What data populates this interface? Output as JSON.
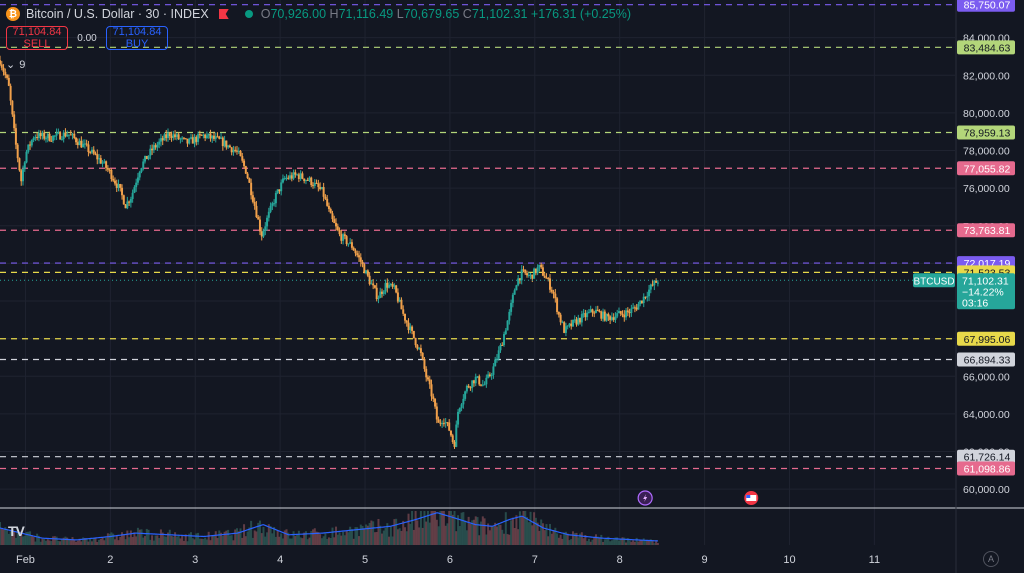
{
  "header": {
    "symbol_title": "Bitcoin / U.S. Dollar · 30 · INDEX",
    "coin_icon": "bitcoin-icon",
    "ohlc": {
      "o_label": "O",
      "o": "70,926.00",
      "h_label": "H",
      "h": "71,116.49",
      "l_label": "L",
      "l": "70,679.65",
      "c_label": "C",
      "c": "71,102.31",
      "change": "+176.31 (+0.25%)"
    }
  },
  "trade": {
    "sell_price": "71,104.84",
    "sell_label": "SELL",
    "spread": "0.00",
    "buy_price": "71,104.84",
    "buy_label": "BUY"
  },
  "indicators_collapsed_count": "9",
  "colors": {
    "background": "#131722",
    "up": "#26a69a",
    "down": "#f0a04b",
    "green_line": "#b3d67a",
    "pink_line": "#e66a8e",
    "white_line": "#d1d4dc",
    "yellow_line": "#e8d94a",
    "purple_line": "#7b5cf0",
    "volume_ma": "#2962ff"
  },
  "chart_data": {
    "type": "candlestick",
    "ylim": [
      59000,
      86000
    ],
    "y_ticks": [
      "60,000.00",
      "62,000.00",
      "64,000.00",
      "66,000.00",
      "68,000.00",
      "70,000.00",
      "72,000.00",
      "74,000.00",
      "76,000.00",
      "78,000.00",
      "80,000.00",
      "82,000.00",
      "84,000.00"
    ],
    "x_ticks": [
      {
        "label": "Feb",
        "pos": 0
      },
      {
        "label": "2",
        "pos": 1
      },
      {
        "label": "3",
        "pos": 2
      },
      {
        "label": "4",
        "pos": 3
      },
      {
        "label": "5",
        "pos": 4
      },
      {
        "label": "6",
        "pos": 5
      },
      {
        "label": "7",
        "pos": 6
      },
      {
        "label": "8",
        "pos": 7
      },
      {
        "label": "9",
        "pos": 8
      },
      {
        "label": "10",
        "pos": 9
      },
      {
        "label": "11",
        "pos": 10
      }
    ],
    "x_range": [
      -0.3,
      10.95
    ],
    "price_path": [
      [
        -0.3,
        82800
      ],
      [
        -0.2,
        81500
      ],
      [
        -0.12,
        78500
      ],
      [
        -0.05,
        76400
      ],
      [
        0.0,
        77800
      ],
      [
        0.1,
        78800
      ],
      [
        0.3,
        78700
      ],
      [
        0.5,
        78900
      ],
      [
        0.7,
        78200
      ],
      [
        0.9,
        77400
      ],
      [
        1.0,
        76800
      ],
      [
        1.1,
        76000
      ],
      [
        1.18,
        75100
      ],
      [
        1.25,
        75600
      ],
      [
        1.35,
        77100
      ],
      [
        1.5,
        78100
      ],
      [
        1.7,
        78900
      ],
      [
        1.9,
        78400
      ],
      [
        2.1,
        78800
      ],
      [
        2.3,
        78500
      ],
      [
        2.5,
        77900
      ],
      [
        2.6,
        76900
      ],
      [
        2.7,
        75100
      ],
      [
        2.78,
        73500
      ],
      [
        2.85,
        74400
      ],
      [
        2.95,
        75600
      ],
      [
        3.05,
        76500
      ],
      [
        3.2,
        76700
      ],
      [
        3.35,
        76400
      ],
      [
        3.5,
        75800
      ],
      [
        3.6,
        74400
      ],
      [
        3.7,
        73500
      ],
      [
        3.85,
        72900
      ],
      [
        3.95,
        72100
      ],
      [
        4.05,
        71100
      ],
      [
        4.15,
        70200
      ],
      [
        4.25,
        70900
      ],
      [
        4.35,
        70600
      ],
      [
        4.45,
        69300
      ],
      [
        4.55,
        68300
      ],
      [
        4.65,
        67300
      ],
      [
        4.72,
        66000
      ],
      [
        4.8,
        64800
      ],
      [
        4.86,
        63400
      ],
      [
        4.92,
        63800
      ],
      [
        5.0,
        63100
      ],
      [
        5.05,
        62300
      ],
      [
        5.1,
        64300
      ],
      [
        5.2,
        65400
      ],
      [
        5.3,
        65900
      ],
      [
        5.4,
        65500
      ],
      [
        5.5,
        66300
      ],
      [
        5.6,
        67600
      ],
      [
        5.7,
        69300
      ],
      [
        5.78,
        71000
      ],
      [
        5.85,
        71500
      ],
      [
        5.95,
        71300
      ],
      [
        6.05,
        71800
      ],
      [
        6.15,
        71100
      ],
      [
        6.22,
        70400
      ],
      [
        6.28,
        69300
      ],
      [
        6.35,
        68400
      ],
      [
        6.45,
        68800
      ],
      [
        6.55,
        69100
      ],
      [
        6.7,
        69500
      ],
      [
        6.85,
        69100
      ],
      [
        7.0,
        69300
      ],
      [
        7.1,
        69400
      ],
      [
        7.2,
        69700
      ],
      [
        7.3,
        70300
      ],
      [
        7.38,
        70800
      ],
      [
        7.45,
        71100
      ]
    ],
    "volume_profile": [
      [
        -0.3,
        0.5
      ],
      [
        0.2,
        0.2
      ],
      [
        0.6,
        0.15
      ],
      [
        1.0,
        0.25
      ],
      [
        1.3,
        0.35
      ],
      [
        1.7,
        0.3
      ],
      [
        2.1,
        0.25
      ],
      [
        2.5,
        0.35
      ],
      [
        2.8,
        0.6
      ],
      [
        3.1,
        0.3
      ],
      [
        3.5,
        0.35
      ],
      [
        3.9,
        0.45
      ],
      [
        4.3,
        0.55
      ],
      [
        4.6,
        0.75
      ],
      [
        4.85,
        0.95
      ],
      [
        5.05,
        0.8
      ],
      [
        5.3,
        0.6
      ],
      [
        5.5,
        0.55
      ],
      [
        5.7,
        0.75
      ],
      [
        5.85,
        0.85
      ],
      [
        6.1,
        0.5
      ],
      [
        6.4,
        0.3
      ],
      [
        6.8,
        0.2
      ],
      [
        7.2,
        0.15
      ],
      [
        7.45,
        0.12
      ]
    ],
    "horizontal_levels": [
      {
        "label": "85,750.07",
        "value": 85750.07,
        "color": "#7b5cf0"
      },
      {
        "label": "83,484.63",
        "value": 83484.63,
        "color": "#b3d67a"
      },
      {
        "label": "78,959.13",
        "value": 78959.13,
        "color": "#b3d67a"
      },
      {
        "label": "77,055.82",
        "value": 77055.82,
        "color": "#e66a8e"
      },
      {
        "label": "73,763.81",
        "value": 73763.81,
        "color": "#e66a8e"
      },
      {
        "label": "72,017.19",
        "value": 72017.19,
        "color": "#7b5cf0"
      },
      {
        "label": "71,523.53",
        "value": 71523.53,
        "color": "#e8d94a"
      },
      {
        "label": "67,995.06",
        "value": 67995.06,
        "color": "#e8d94a"
      },
      {
        "label": "66,894.33",
        "value": 66894.33,
        "color": "#d1d4dc"
      },
      {
        "label": "61,726.14",
        "value": 61726.14,
        "color": "#d1d4dc"
      },
      {
        "label": "61,098.86",
        "value": 61098.86,
        "color": "#e66a8e"
      }
    ],
    "current_price": {
      "symbol": "BTCUSD",
      "price": "71,102.31",
      "change": "−14.22%",
      "countdown": "03:16",
      "value": 71102.31
    },
    "events": [
      {
        "icon": "lightning-event-icon",
        "pos": 7.3
      },
      {
        "icon": "us-flag-event-icon",
        "pos": 8.55
      }
    ]
  }
}
